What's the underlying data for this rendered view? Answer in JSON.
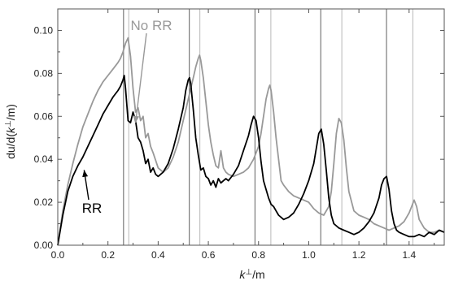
{
  "chart_data": {
    "type": "line",
    "xlabel": "k⊥/m",
    "ylabel": "du/d(k⊥/m)",
    "xlim": [
      0,
      1.54
    ],
    "ylim": [
      0,
      0.11
    ],
    "xticks": [
      0.0,
      0.2,
      0.4,
      0.6,
      0.8,
      1.0,
      1.2,
      1.4
    ],
    "xtick_labels": [
      "0.0",
      "0.2",
      "0.4",
      "0.6",
      "0.8",
      "1.0",
      "1.2",
      "1.4"
    ],
    "yticks": [
      0.0,
      0.02,
      0.04,
      0.06,
      0.08,
      0.1
    ],
    "ytick_labels": [
      "0.00",
      "0.02",
      "0.04",
      "0.06",
      "0.08",
      "0.10"
    ],
    "grid": false,
    "vlines": [
      {
        "x": 0.262,
        "color": "#7a7a7a"
      },
      {
        "x": 0.283,
        "color": "#c4c4c4"
      },
      {
        "x": 0.524,
        "color": "#7a7a7a"
      },
      {
        "x": 0.566,
        "color": "#c4c4c4"
      },
      {
        "x": 0.786,
        "color": "#7a7a7a"
      },
      {
        "x": 0.849,
        "color": "#c4c4c4"
      },
      {
        "x": 1.048,
        "color": "#7a7a7a"
      },
      {
        "x": 1.132,
        "color": "#c4c4c4"
      },
      {
        "x": 1.31,
        "color": "#7a7a7a"
      },
      {
        "x": 1.415,
        "color": "#c4c4c4"
      }
    ],
    "series": [
      {
        "name": "No RR",
        "color": "#999999",
        "x": [
          0.0,
          0.02,
          0.04,
          0.06,
          0.08,
          0.1,
          0.12,
          0.14,
          0.16,
          0.18,
          0.2,
          0.22,
          0.24,
          0.25,
          0.26,
          0.27,
          0.28,
          0.29,
          0.3,
          0.31,
          0.32,
          0.33,
          0.34,
          0.35,
          0.36,
          0.37,
          0.38,
          0.4,
          0.42,
          0.44,
          0.46,
          0.48,
          0.5,
          0.52,
          0.54,
          0.55,
          0.56,
          0.565,
          0.57,
          0.58,
          0.59,
          0.6,
          0.61,
          0.62,
          0.63,
          0.64,
          0.65,
          0.66,
          0.67,
          0.68,
          0.7,
          0.72,
          0.74,
          0.76,
          0.78,
          0.8,
          0.81,
          0.82,
          0.83,
          0.84,
          0.845,
          0.85,
          0.86,
          0.87,
          0.88,
          0.89,
          0.9,
          0.92,
          0.94,
          0.96,
          0.98,
          1.0,
          1.02,
          1.04,
          1.06,
          1.08,
          1.09,
          1.1,
          1.11,
          1.12,
          1.13,
          1.14,
          1.15,
          1.16,
          1.18,
          1.2,
          1.22,
          1.24,
          1.26,
          1.28,
          1.3,
          1.32,
          1.34,
          1.36,
          1.38,
          1.4,
          1.41,
          1.42,
          1.43,
          1.44,
          1.46,
          1.48,
          1.5,
          1.52,
          1.54
        ],
        "y": [
          0.0,
          0.016,
          0.028,
          0.038,
          0.047,
          0.055,
          0.061,
          0.067,
          0.072,
          0.076,
          0.079,
          0.082,
          0.085,
          0.087,
          0.09,
          0.094,
          0.0965,
          0.088,
          0.073,
          0.062,
          0.064,
          0.058,
          0.06,
          0.05,
          0.052,
          0.046,
          0.043,
          0.036,
          0.034,
          0.036,
          0.041,
          0.048,
          0.058,
          0.068,
          0.078,
          0.083,
          0.087,
          0.0885,
          0.086,
          0.078,
          0.067,
          0.056,
          0.048,
          0.042,
          0.037,
          0.036,
          0.044,
          0.036,
          0.034,
          0.033,
          0.032,
          0.033,
          0.034,
          0.036,
          0.04,
          0.046,
          0.052,
          0.06,
          0.068,
          0.073,
          0.0745,
          0.072,
          0.062,
          0.05,
          0.04,
          0.03,
          0.028,
          0.025,
          0.023,
          0.022,
          0.021,
          0.02,
          0.017,
          0.015,
          0.014,
          0.018,
          0.025,
          0.038,
          0.052,
          0.059,
          0.057,
          0.049,
          0.036,
          0.025,
          0.016,
          0.014,
          0.013,
          0.012,
          0.01,
          0.009,
          0.008,
          0.007,
          0.008,
          0.009,
          0.011,
          0.015,
          0.018,
          0.021,
          0.018,
          0.012,
          0.008,
          0.006,
          0.006,
          0.007,
          0.006
        ]
      },
      {
        "name": "RR",
        "color": "#000000",
        "x": [
          0.0,
          0.02,
          0.04,
          0.06,
          0.08,
          0.1,
          0.12,
          0.14,
          0.16,
          0.18,
          0.2,
          0.22,
          0.24,
          0.25,
          0.26,
          0.265,
          0.27,
          0.28,
          0.29,
          0.3,
          0.31,
          0.32,
          0.33,
          0.34,
          0.35,
          0.36,
          0.37,
          0.38,
          0.39,
          0.4,
          0.42,
          0.44,
          0.46,
          0.48,
          0.5,
          0.51,
          0.52,
          0.525,
          0.53,
          0.54,
          0.55,
          0.56,
          0.57,
          0.58,
          0.59,
          0.6,
          0.61,
          0.62,
          0.63,
          0.64,
          0.65,
          0.66,
          0.67,
          0.68,
          0.7,
          0.72,
          0.74,
          0.76,
          0.77,
          0.78,
          0.79,
          0.8,
          0.81,
          0.82,
          0.83,
          0.84,
          0.85,
          0.86,
          0.87,
          0.88,
          0.9,
          0.92,
          0.94,
          0.96,
          0.98,
          1.0,
          1.02,
          1.03,
          1.04,
          1.05,
          1.06,
          1.07,
          1.08,
          1.09,
          1.1,
          1.12,
          1.14,
          1.16,
          1.18,
          1.2,
          1.22,
          1.24,
          1.26,
          1.28,
          1.29,
          1.3,
          1.31,
          1.32,
          1.33,
          1.34,
          1.35,
          1.36,
          1.38,
          1.4,
          1.42,
          1.44,
          1.46,
          1.48,
          1.5,
          1.52,
          1.54
        ],
        "y": [
          0.0,
          0.014,
          0.025,
          0.032,
          0.037,
          0.041,
          0.046,
          0.051,
          0.056,
          0.061,
          0.065,
          0.069,
          0.072,
          0.074,
          0.077,
          0.079,
          0.073,
          0.058,
          0.057,
          0.062,
          0.058,
          0.05,
          0.048,
          0.044,
          0.038,
          0.04,
          0.034,
          0.036,
          0.033,
          0.032,
          0.034,
          0.038,
          0.045,
          0.054,
          0.064,
          0.072,
          0.077,
          0.078,
          0.075,
          0.063,
          0.05,
          0.042,
          0.035,
          0.036,
          0.032,
          0.031,
          0.028,
          0.03,
          0.027,
          0.031,
          0.029,
          0.03,
          0.031,
          0.03,
          0.033,
          0.037,
          0.044,
          0.051,
          0.056,
          0.06,
          0.058,
          0.05,
          0.039,
          0.03,
          0.026,
          0.022,
          0.019,
          0.018,
          0.016,
          0.014,
          0.012,
          0.013,
          0.015,
          0.019,
          0.024,
          0.03,
          0.038,
          0.045,
          0.052,
          0.054,
          0.047,
          0.035,
          0.022,
          0.014,
          0.01,
          0.008,
          0.007,
          0.006,
          0.005,
          0.006,
          0.008,
          0.011,
          0.015,
          0.022,
          0.028,
          0.031,
          0.032,
          0.026,
          0.016,
          0.01,
          0.007,
          0.006,
          0.005,
          0.004,
          0.004,
          0.005,
          0.004,
          0.006,
          0.005,
          0.007,
          0.006
        ]
      }
    ],
    "annotations": [
      {
        "text": "No RR",
        "color": "#999999",
        "arrow_to": [
          0.31,
          0.057
        ]
      },
      {
        "text": "RR",
        "color": "#000000",
        "arrow_to": [
          0.105,
          0.035
        ]
      }
    ]
  }
}
